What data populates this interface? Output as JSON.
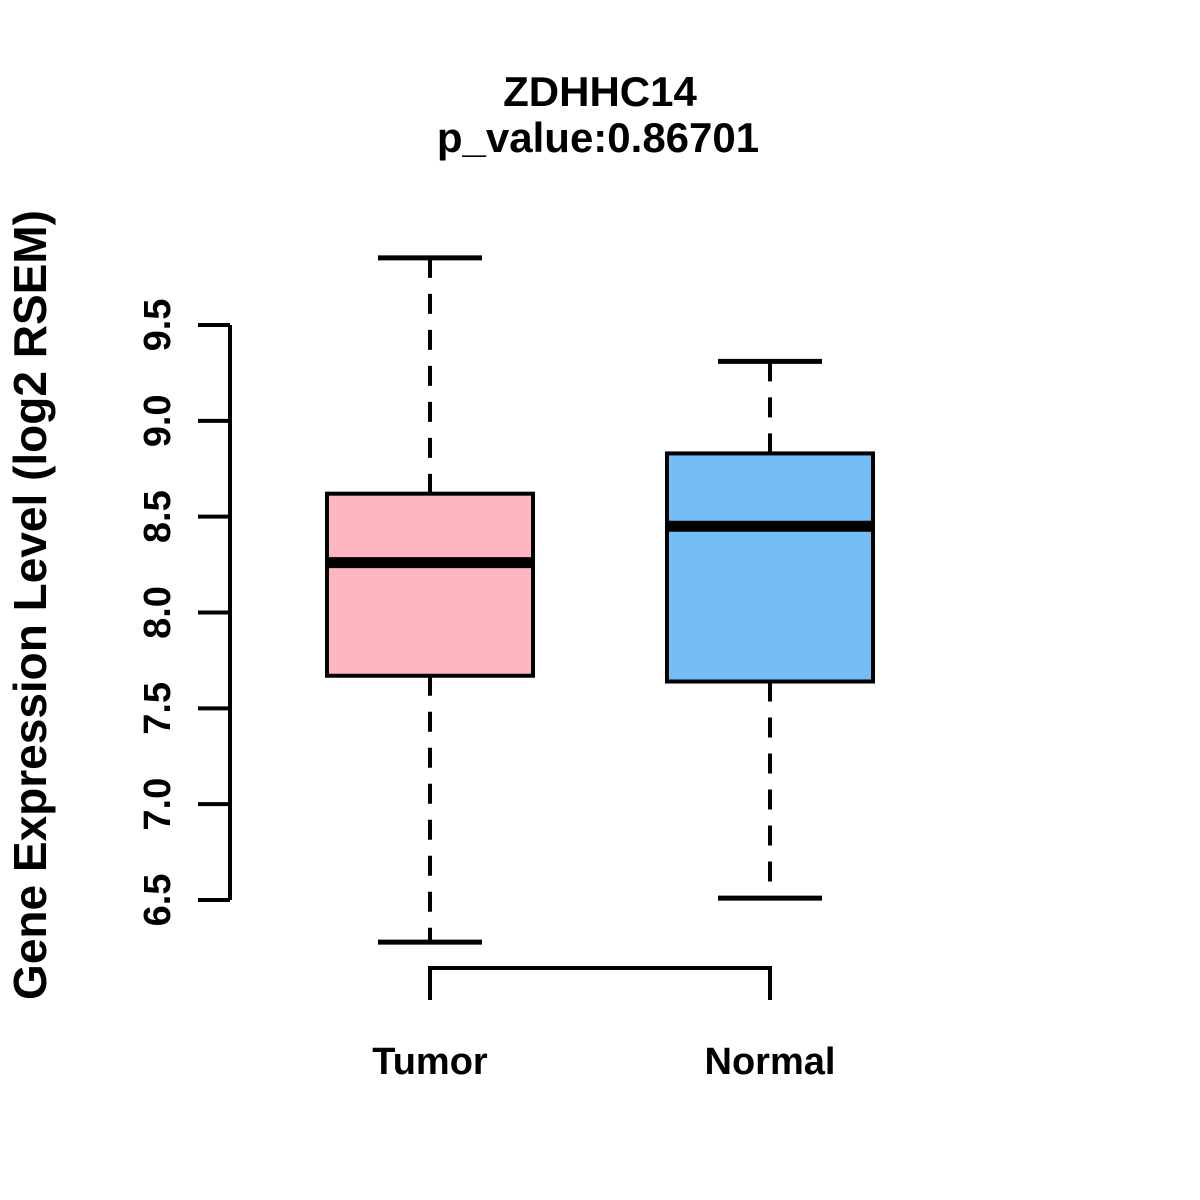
{
  "figure": {
    "title": "ZDHHC14",
    "subtitle": "p_value:0.86701",
    "background_color": "#FFFFFF"
  },
  "chart_data": {
    "type": "boxplot",
    "title": "ZDHHC14",
    "subtitle": "p_value:0.86701",
    "xlabel": "",
    "ylabel": "Gene Expression Level (log2 RSEM)",
    "ylim": [
      6.2,
      9.9
    ],
    "yticks": [
      6.5,
      7.0,
      7.5,
      8.0,
      8.5,
      9.0,
      9.5
    ],
    "ytick_labels": [
      "6.5",
      "7.0",
      "7.5",
      "8.0",
      "8.5",
      "9.0",
      "9.5"
    ],
    "categories": [
      "Tumor",
      "Normal"
    ],
    "grid": false,
    "legend": false,
    "whisker_style": "dashed",
    "stroke_color": "#000000",
    "series": [
      {
        "name": "Tumor",
        "fill_color": "#FFB6C1",
        "whisker_low": 6.28,
        "q1": 7.67,
        "median": 8.26,
        "q3": 8.62,
        "whisker_high": 9.85
      },
      {
        "name": "Normal",
        "fill_color": "#74BDF5",
        "whisker_low": 6.51,
        "q1": 7.64,
        "median": 8.45,
        "q3": 8.83,
        "whisker_high": 9.31
      }
    ]
  }
}
